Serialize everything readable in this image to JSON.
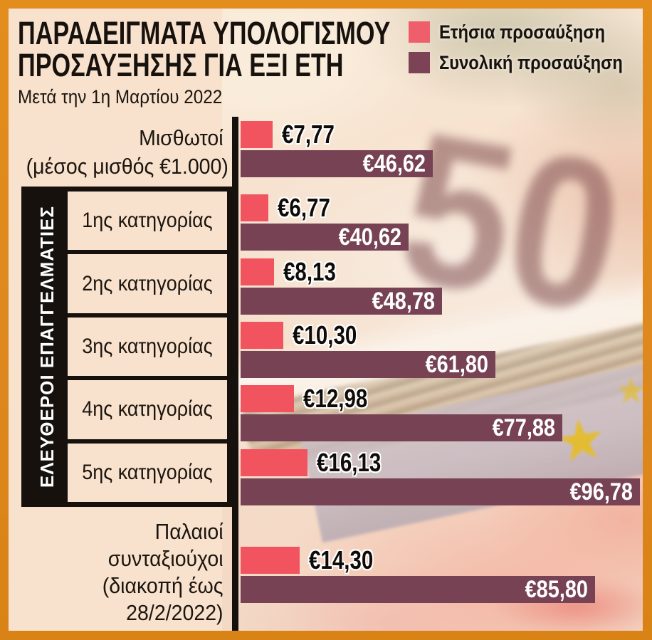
{
  "title": {
    "line1": "ΠΑΡΑΔΕΙΓΜΑΤΑ ΥΠΟΛΟΓΙΣΜΟΥ",
    "line2": "ΠΡΟΣΑΥΞΗΣΗΣ ΓΙΑ ΕΞΙ ΕΤΗ",
    "subtitle": "Μετά την 1η Μαρτίου 2022"
  },
  "legend": [
    {
      "label": "Ετήσια προσαύξηση",
      "color": "#ee5f6b"
    },
    {
      "label": "Συνολική προσαύξηση",
      "color": "#7b4355"
    }
  ],
  "group_label": "ΕΛΕΥΘΕΡΟΙ ΕΠΑΓΓΕΛΜΑΤΙΕΣ",
  "background": {
    "banknote_numeral": "50",
    "star_glyph": "★"
  },
  "colors": {
    "annual": "#f1545f",
    "total": "#764254",
    "frame": "#de881e",
    "panel": "#f8e2cd",
    "axis": "#16110d"
  },
  "chart_data": {
    "type": "bar",
    "orientation": "horizontal",
    "title": "ΠΑΡΑΔΕΙΓΜΑΤΑ ΥΠΟΛΟΓΙΣΜΟΥ ΠΡΟΣΑΥΞΗΣΗΣ ΓΙΑ ΕΞΙ ΕΤΗ",
    "subtitle": "Μετά την 1η Μαρτίου 2022",
    "series": [
      "Ετήσια προσαύξηση",
      "Συνολική προσαύξηση"
    ],
    "value_unit": "€",
    "xlim": [
      0,
      100
    ],
    "rows": [
      {
        "label": "Μισθωτοί (μέσος μισθός €1.000)",
        "label_lines": [
          "Μισθωτοί",
          "(μέσος μισθός €1.000)"
        ],
        "group": null,
        "annual": 7.77,
        "annual_label": "€7,77",
        "total": 46.62,
        "total_label": "€46,62"
      },
      {
        "label": "1ης κατηγορίας",
        "group": "ΕΛΕΥΘΕΡΟΙ ΕΠΑΓΓΕΛΜΑΤΙΕΣ",
        "annual": 6.77,
        "annual_label": "€6,77",
        "total": 40.62,
        "total_label": "€40,62"
      },
      {
        "label": "2ης κατηγορίας",
        "group": "ΕΛΕΥΘΕΡΟΙ ΕΠΑΓΓΕΛΜΑΤΙΕΣ",
        "annual": 8.13,
        "annual_label": "€8,13",
        "total": 48.78,
        "total_label": "€48,78"
      },
      {
        "label": "3ης κατηγορίας",
        "group": "ΕΛΕΥΘΕΡΟΙ ΕΠΑΓΓΕΛΜΑΤΙΕΣ",
        "annual": 10.3,
        "annual_label": "€10,30",
        "total": 61.8,
        "total_label": "€61,80"
      },
      {
        "label": "4ης κατηγορίας",
        "group": "ΕΛΕΥΘΕΡΟΙ ΕΠΑΓΓΕΛΜΑΤΙΕΣ",
        "annual": 12.98,
        "annual_label": "€12,98",
        "total": 77.88,
        "total_label": "€77,88"
      },
      {
        "label": "5ης κατηγορίας",
        "group": "ΕΛΕΥΘΕΡΟΙ ΕΠΑΓΓΕΛΜΑΤΙΕΣ",
        "annual": 16.13,
        "annual_label": "€16,13",
        "total": 96.78,
        "total_label": "€96,78"
      },
      {
        "label": "Παλαιοί συνταξιούχοι (διακοπή έως 28/2/2022)",
        "label_lines": [
          "Παλαιοί",
          "συνταξιούχοι",
          "(διακοπή έως",
          "28/2/2022)"
        ],
        "group": null,
        "annual": 14.3,
        "annual_label": "€14,30",
        "total": 85.8,
        "total_label": "€85,80"
      }
    ]
  }
}
